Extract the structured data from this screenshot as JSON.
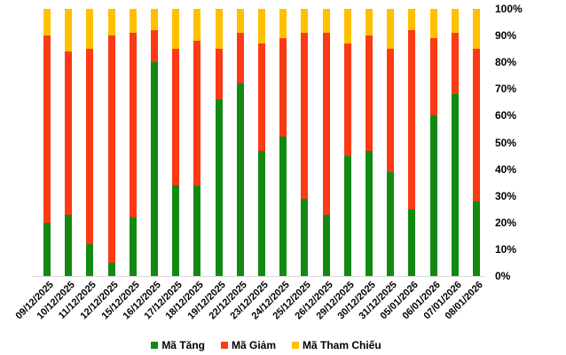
{
  "chart_data": {
    "type": "bar",
    "variant": "stacked-100-percent",
    "categories": [
      "09/12/2025",
      "10/12/2025",
      "11/12/2025",
      "12/12/2025",
      "15/12/2025",
      "16/12/2025",
      "17/12/2025",
      "18/12/2025",
      "19/12/2025",
      "22/12/2025",
      "23/12/2025",
      "24/12/2025",
      "25/12/2025",
      "26/12/2025",
      "29/12/2025",
      "30/12/2025",
      "31/12/2025",
      "05/01/2026",
      "06/01/2026",
      "07/01/2026",
      "08/01/2026"
    ],
    "series": [
      {
        "name": "Mã Tăng",
        "color": "#128a12",
        "values": [
          20,
          23,
          12,
          5,
          22,
          80,
          34,
          34,
          66,
          72,
          47,
          52,
          29,
          23,
          45,
          47,
          39,
          25,
          60,
          68,
          28
        ]
      },
      {
        "name": "Mã Giảm",
        "color": "#fc3a15",
        "values": [
          70,
          61,
          73,
          85,
          69,
          12,
          51,
          54,
          19,
          19,
          40,
          37,
          62,
          68,
          42,
          43,
          46,
          67,
          29,
          23,
          57
        ]
      },
      {
        "name": "Mã Tham Chiếu",
        "color": "#ffc000",
        "values": [
          10,
          16,
          15,
          10,
          9,
          8,
          15,
          12,
          15,
          9,
          13,
          11,
          9,
          9,
          13,
          10,
          15,
          8,
          11,
          9,
          15
        ]
      }
    ],
    "ylim": [
      0,
      100
    ],
    "y_ticks": [
      "0%",
      "10%",
      "20%",
      "30%",
      "40%",
      "50%",
      "60%",
      "70%",
      "80%",
      "90%",
      "100%"
    ],
    "y_axis_side": "right",
    "x_label_rotation_deg": 45,
    "grid": false,
    "legend_position": "bottom"
  },
  "colors": {
    "axis_line": "#d9d9d9",
    "label_text": "#000000",
    "background": "#ffffff"
  }
}
